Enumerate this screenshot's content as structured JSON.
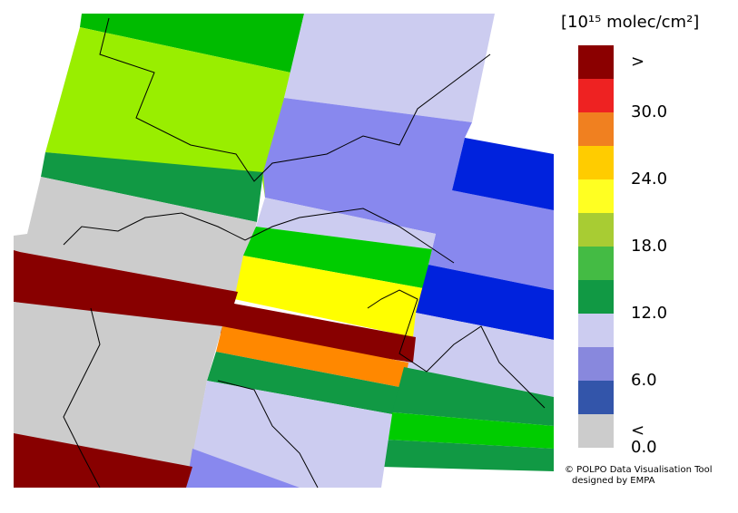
{
  "legend": {
    "title": "[10¹⁵ molec/cm²]",
    "labels": [
      ">",
      "30.0",
      "24.0",
      "18.0",
      "12.0",
      "6.0",
      "0.0",
      "<"
    ],
    "colors": [
      "#8b0000",
      "#ee2222",
      "#f08020",
      "#ffcc00",
      "#ffff22",
      "#a8cc33",
      "#44bb44",
      "#119944",
      "#ccccf0",
      "#8888dd",
      "#3355aa",
      "#cccccc"
    ]
  },
  "credits": [
    "© POLPO Data Visualisation Tool",
    "designed by EMPA"
  ]
}
